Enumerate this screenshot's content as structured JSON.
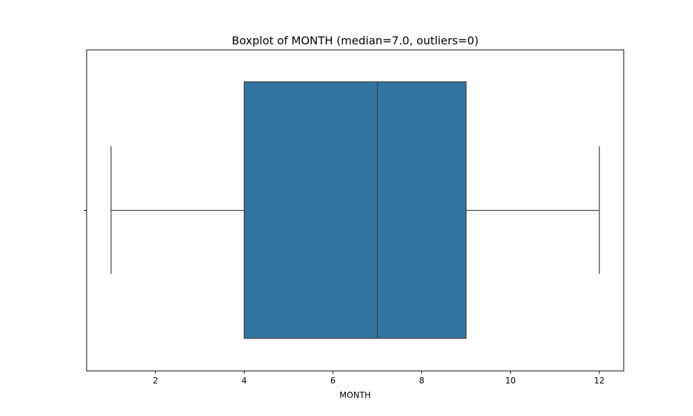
{
  "chart_data": {
    "type": "boxplot",
    "title": "Boxplot of MONTH (median=7.0, outliers=0)",
    "xlabel": "MONTH",
    "ylabel": "",
    "xlim": [
      0.45,
      12.55
    ],
    "xticks": [
      2,
      4,
      6,
      8,
      10,
      12
    ],
    "xtick_labels": [
      "2",
      "4",
      "6",
      "8",
      "10",
      "12"
    ],
    "grid": false,
    "box": {
      "whisker_low": 1,
      "q1": 4,
      "median": 7,
      "q3": 9,
      "whisker_high": 12,
      "outliers": []
    },
    "colors": {
      "box_fill": "#3274a1",
      "line": "#3f3f3f",
      "axes": "#000000"
    }
  }
}
